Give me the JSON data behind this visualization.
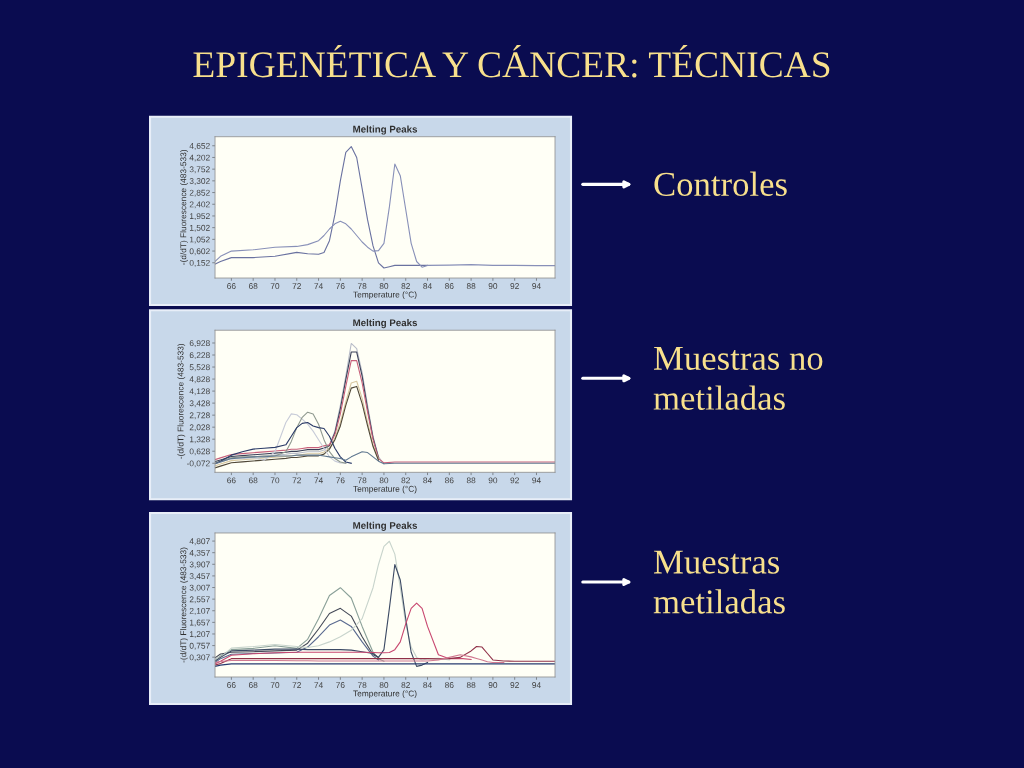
{
  "chart_data": [
    {
      "type": "line",
      "title": "Melting Peaks",
      "xlabel": "Temperature (°C)",
      "ylabel": "-(d/dT) Fluorescence (483-533)",
      "annotations": [
        "EPIGENÉTICA Y CÁNCER: TÉCNICAS",
        "Controles"
      ],
      "x": [
        64.5,
        65,
        66,
        68,
        70,
        72,
        73,
        74,
        74.5,
        75,
        75.5,
        76,
        76.5,
        77,
        77.5,
        78,
        78.5,
        79,
        79.5,
        80,
        80.5,
        81,
        81.5,
        82,
        82.5,
        83,
        83.5,
        84,
        86,
        88,
        90,
        92,
        94,
        95.7
      ],
      "xlim": [
        64.5,
        95.7
      ],
      "ylim": [
        -0.435,
        5.0
      ],
      "xticks": [
        66,
        68,
        70,
        72,
        74,
        76,
        78,
        80,
        82,
        84,
        86,
        88,
        90,
        92,
        94
      ],
      "yticks": [
        {
          "value": 0.152,
          "label": "0,152"
        },
        {
          "value": 0.602,
          "label": "0,602"
        },
        {
          "value": 1.052,
          "label": "1,052"
        },
        {
          "value": 1.502,
          "label": "1,502"
        },
        {
          "value": 1.952,
          "label": "1,952"
        },
        {
          "value": 2.402,
          "label": "2,402"
        },
        {
          "value": 2.852,
          "label": "2,852"
        },
        {
          "value": 3.302,
          "label": "3,302"
        },
        {
          "value": 3.752,
          "label": "3,752"
        },
        {
          "value": 4.202,
          "label": "4,202"
        },
        {
          "value": 4.652,
          "label": "4,652"
        }
      ],
      "series": [
        {
          "color": "#6a72a0",
          "values": [
            0.1,
            0.2,
            0.35,
            0.35,
            0.4,
            0.55,
            0.5,
            0.48,
            0.55,
            1.0,
            2.0,
            3.3,
            4.4,
            4.62,
            4.2,
            3.0,
            1.8,
            0.8,
            0.15,
            -0.05,
            0.0,
            0.05,
            0.05,
            0.05,
            0.05,
            0.05,
            0.05,
            0.05,
            null,
            null,
            null,
            null,
            null,
            null
          ]
        },
        {
          "color": "#8890b8",
          "values": [
            0.2,
            0.4,
            0.6,
            0.65,
            0.75,
            0.78,
            0.85,
            1.0,
            1.2,
            1.45,
            1.65,
            1.75,
            1.65,
            1.45,
            1.2,
            0.95,
            0.75,
            0.6,
            0.62,
            0.9,
            2.3,
            3.95,
            3.5,
            2.2,
            0.9,
            0.2,
            -0.02,
            0.05,
            0.06,
            0.08,
            0.05,
            0.05,
            0.04,
            0.04
          ]
        }
      ]
    },
    {
      "type": "line",
      "title": "Melting Peaks",
      "xlabel": "Temperature (°C)",
      "ylabel": "-(d/dT) Fluorescence (483-533)",
      "annotations": [
        "Muestras no\nmetiladas"
      ],
      "x": [
        64.5,
        65,
        66,
        67,
        68,
        69,
        70,
        71,
        71.5,
        72,
        72.5,
        73,
        73.5,
        74,
        74.5,
        75,
        75.5,
        76,
        76.5,
        77,
        77.5,
        78,
        78.5,
        79,
        79.5,
        80,
        81,
        82,
        84,
        86,
        88,
        90,
        92,
        94,
        95.7
      ],
      "xlim": [
        64.5,
        95.7
      ],
      "ylim": [
        -0.6,
        7.67
      ],
      "xticks": [
        66,
        68,
        70,
        72,
        74,
        76,
        78,
        80,
        82,
        84,
        86,
        88,
        90,
        92,
        94
      ],
      "yticks": [
        {
          "value": -0.072,
          "label": "-0,072"
        },
        {
          "value": 0.628,
          "label": "0,628"
        },
        {
          "value": 1.328,
          "label": "1,328"
        },
        {
          "value": 2.028,
          "label": "2,028"
        },
        {
          "value": 2.728,
          "label": "2,728"
        },
        {
          "value": 3.428,
          "label": "3,428"
        },
        {
          "value": 4.128,
          "label": "4,128"
        },
        {
          "value": 4.828,
          "label": "4,828"
        },
        {
          "value": 5.528,
          "label": "5,528"
        },
        {
          "value": 6.228,
          "label": "6,228"
        },
        {
          "value": 6.928,
          "label": "6,928"
        }
      ],
      "series": [
        {
          "color": "#b8bcc8",
          "values": [
            -0.1,
            0.0,
            0.2,
            0.25,
            0.3,
            0.35,
            0.4,
            0.45,
            0.5,
            0.5,
            0.55,
            0.6,
            0.6,
            0.6,
            0.7,
            1.0,
            1.8,
            3.3,
            5.0,
            6.9,
            6.6,
            5.2,
            3.3,
            1.5,
            0.3,
            -0.12,
            null,
            null,
            null,
            null,
            null,
            null,
            null,
            null,
            null
          ]
        },
        {
          "color": "#3a4058",
          "values": [
            0.02,
            0.12,
            0.32,
            0.37,
            0.42,
            0.47,
            0.52,
            0.57,
            0.62,
            0.62,
            0.67,
            0.72,
            0.72,
            0.72,
            0.82,
            0.95,
            1.7,
            3.1,
            4.8,
            6.4,
            6.4,
            5.0,
            3.1,
            1.4,
            0.25,
            null,
            null,
            null,
            null,
            null,
            null,
            null,
            null,
            null,
            null
          ]
        },
        {
          "color": "#c8607a",
          "values": [
            0.14,
            0.24,
            0.44,
            0.49,
            0.54,
            0.59,
            0.64,
            0.69,
            0.74,
            0.74,
            0.79,
            0.84,
            0.84,
            0.84,
            0.94,
            1.0,
            1.6,
            2.8,
            4.4,
            5.9,
            5.9,
            4.6,
            2.9,
            1.3,
            0.2,
            -0.05,
            0.0,
            0.0,
            0.0,
            0.0,
            0.0,
            0.0,
            0.0,
            0.0,
            0.0
          ]
        },
        {
          "color": "#d8c8a0",
          "values": [
            -0.22,
            -0.12,
            0.08,
            0.13,
            0.18,
            0.23,
            0.28,
            0.33,
            0.38,
            0.38,
            0.43,
            0.48,
            0.48,
            0.48,
            0.58,
            0.8,
            1.4,
            2.3,
            3.5,
            4.6,
            4.7,
            3.7,
            2.3,
            1.0,
            0.15,
            null,
            null,
            null,
            null,
            null,
            null,
            null,
            null,
            null,
            null
          ]
        },
        {
          "color": "#504838",
          "values": [
            -0.34,
            -0.24,
            -0.04,
            0.01,
            0.06,
            0.11,
            0.16,
            0.21,
            0.26,
            0.26,
            0.31,
            0.36,
            0.36,
            0.36,
            0.46,
            0.75,
            1.3,
            2.1,
            3.3,
            4.3,
            4.4,
            3.4,
            2.1,
            0.9,
            0.1,
            null,
            null,
            null,
            null,
            null,
            null,
            null,
            null,
            null,
            null
          ]
        },
        {
          "color": "#c8ccd8",
          "values": [
            -0.1,
            0.0,
            0.2,
            0.2,
            0.25,
            0.1,
            0.6,
            2.3,
            2.8,
            2.75,
            2.5,
            2.2,
            1.8,
            1.3,
            0.8,
            0.3,
            0.05,
            -0.05,
            -0.07,
            null,
            null,
            null,
            null,
            null,
            null,
            null,
            null,
            null,
            null,
            null,
            null,
            null,
            null,
            null,
            null
          ]
        },
        {
          "color": "#909a90",
          "values": [
            -0.05,
            0.05,
            0.25,
            0.3,
            0.3,
            0.35,
            0.35,
            0.6,
            1.2,
            2.0,
            2.6,
            2.9,
            2.8,
            2.2,
            1.3,
            0.6,
            0.2,
            0.0,
            -0.07,
            null,
            null,
            null,
            null,
            null,
            null,
            null,
            null,
            null,
            null,
            null,
            null,
            null,
            null,
            null,
            null
          ]
        },
        {
          "color": "#2c3c68",
          "values": [
            -0.1,
            0.05,
            0.4,
            0.6,
            0.75,
            0.8,
            0.85,
            1.0,
            1.5,
            2.0,
            2.25,
            2.3,
            2.1,
            2.0,
            1.95,
            1.5,
            0.8,
            0.3,
            0.0,
            -0.07,
            null,
            null,
            null,
            null,
            null,
            null,
            null,
            null,
            null,
            null,
            null,
            null,
            null,
            null,
            null
          ]
        },
        {
          "color": "#607890",
          "values": [
            -0.1,
            0.0,
            0.2,
            0.25,
            0.3,
            0.3,
            0.35,
            0.35,
            0.35,
            0.4,
            0.4,
            0.4,
            0.4,
            0.4,
            0.35,
            0.3,
            0.25,
            0.2,
            0.1,
            0.3,
            0.45,
            0.6,
            0.55,
            0.3,
            0.05,
            -0.1,
            -0.07,
            -0.07,
            -0.07,
            -0.07,
            -0.07,
            -0.07,
            -0.07,
            -0.07,
            -0.07
          ]
        }
      ]
    },
    {
      "type": "line",
      "title": "Melting Peaks",
      "xlabel": "Temperature (°C)",
      "ylabel": "-(d/dT) Fluorescence (483-533)",
      "annotations": [
        "Muestras\nmetiladas"
      ],
      "x": [
        64.5,
        65,
        66,
        68,
        70,
        72,
        73,
        74,
        75,
        76,
        77,
        78,
        79,
        79.5,
        80,
        80.5,
        81,
        81.5,
        82,
        82.5,
        83,
        83.5,
        84,
        85,
        86,
        87,
        88,
        88.5,
        89,
        89.5,
        90,
        91,
        92,
        94,
        95.7
      ],
      "xlim": [
        64.5,
        95.7
      ],
      "ylim": [
        -0.46,
        5.12
      ],
      "xticks": [
        66,
        68,
        70,
        72,
        74,
        76,
        78,
        80,
        82,
        84,
        86,
        88,
        90,
        92,
        94
      ],
      "yticks": [
        {
          "value": 0.307,
          "label": "0,307"
        },
        {
          "value": 0.757,
          "label": "0,757"
        },
        {
          "value": 1.207,
          "label": "1,207"
        },
        {
          "value": 1.657,
          "label": "1,657"
        },
        {
          "value": 2.107,
          "label": "2,107"
        },
        {
          "value": 2.557,
          "label": "2,557"
        },
        {
          "value": 3.007,
          "label": "3,007"
        },
        {
          "value": 3.457,
          "label": "3,457"
        },
        {
          "value": 3.907,
          "label": "3,907"
        },
        {
          "value": 4.357,
          "label": "4,357"
        },
        {
          "value": 4.807,
          "label": "4,807"
        }
      ],
      "series": [
        {
          "color": "#8aa098",
          "values": [
            0.2,
            0.35,
            0.6,
            0.65,
            0.75,
            0.65,
            1.0,
            1.8,
            2.7,
            3.0,
            2.6,
            1.5,
            0.5,
            0.25,
            0.15,
            null,
            null,
            null,
            null,
            null,
            null,
            null,
            null,
            null,
            null,
            null,
            null,
            null,
            null,
            null,
            null,
            null,
            null,
            null,
            null
          ]
        },
        {
          "color": "#454a58",
          "values": [
            0.28,
            0.43,
            0.5,
            0.52,
            0.55,
            0.58,
            0.85,
            1.4,
            2.0,
            2.2,
            1.9,
            1.1,
            0.4,
            0.3,
            null,
            null,
            null,
            null,
            null,
            null,
            null,
            null,
            null,
            null,
            null,
            null,
            null,
            null,
            null,
            null,
            null,
            null,
            null,
            null,
            null
          ]
        },
        {
          "color": "#5a6a90",
          "values": [
            0.1,
            0.25,
            0.42,
            0.45,
            0.47,
            0.5,
            0.7,
            1.1,
            1.55,
            1.75,
            1.5,
            0.9,
            0.35,
            0.2,
            null,
            null,
            null,
            null,
            null,
            null,
            null,
            null,
            null,
            null,
            null,
            null,
            null,
            null,
            null,
            null,
            null,
            null,
            null,
            null,
            null
          ]
        },
        {
          "color": "#c8d4cc",
          "values": [
            0.22,
            0.3,
            0.66,
            0.72,
            0.8,
            0.72,
            0.68,
            0.75,
            0.9,
            1.1,
            1.35,
            1.8,
            3.0,
            3.9,
            4.6,
            4.8,
            4.3,
            3.0,
            1.6,
            0.7,
            0.3,
            0.2,
            0.24,
            0.26,
            0.2,
            null,
            null,
            null,
            null,
            null,
            null,
            null,
            null,
            null,
            null
          ]
        },
        {
          "color": "#3c4a64",
          "values": [
            0.15,
            0.3,
            0.55,
            0.58,
            0.62,
            0.62,
            0.6,
            0.6,
            0.6,
            0.6,
            0.58,
            0.52,
            0.45,
            0.3,
            0.6,
            2.2,
            3.9,
            3.3,
            1.8,
            0.5,
            -0.05,
            0.0,
            0.1,
            null,
            null,
            null,
            null,
            null,
            null,
            null,
            null,
            null,
            null,
            null,
            null
          ]
        },
        {
          "color": "#c84870",
          "values": [
            0.05,
            0.15,
            0.38,
            0.44,
            0.48,
            0.5,
            0.5,
            0.5,
            0.5,
            0.5,
            0.5,
            0.5,
            0.49,
            0.48,
            0.48,
            0.49,
            0.6,
            0.9,
            1.6,
            2.2,
            2.4,
            2.2,
            1.5,
            0.4,
            0.25,
            0.26,
            0.22,
            null,
            null,
            null,
            null,
            null,
            null,
            null,
            null
          ]
        },
        {
          "color": "#903048",
          "values": [
            0.0,
            0.06,
            0.25,
            0.25,
            0.25,
            0.25,
            0.25,
            0.25,
            0.25,
            0.25,
            0.25,
            0.25,
            0.25,
            0.25,
            0.25,
            0.25,
            0.25,
            0.25,
            0.25,
            0.25,
            0.25,
            0.25,
            0.25,
            0.24,
            0.25,
            0.3,
            0.55,
            0.72,
            0.7,
            0.45,
            0.2,
            0.16,
            0.15,
            0.15,
            0.15
          ]
        },
        {
          "color": "#d07890",
          "values": [
            0.1,
            0.14,
            0.18,
            0.18,
            0.18,
            0.17,
            0.17,
            0.16,
            0.16,
            0.16,
            0.16,
            0.16,
            0.16,
            0.16,
            0.16,
            0.16,
            0.16,
            0.16,
            0.16,
            0.16,
            0.16,
            0.16,
            0.16,
            0.2,
            0.3,
            0.4,
            0.32,
            0.26,
            0.2,
            0.13,
            0.1,
            0.1,
            null,
            null,
            null
          ]
        },
        {
          "color": "#283c70",
          "values": [
            -0.05,
            0.0,
            0.05,
            0.05,
            0.05,
            0.05,
            0.05,
            0.05,
            0.05,
            0.05,
            0.05,
            0.05,
            0.05,
            0.05,
            0.05,
            0.05,
            0.05,
            0.05,
            0.05,
            0.05,
            0.05,
            0.05,
            0.05,
            0.05,
            0.05,
            0.05,
            0.05,
            0.05,
            0.05,
            0.05,
            0.05,
            0.05,
            0.05,
            0.05,
            0.05
          ]
        }
      ]
    }
  ]
}
